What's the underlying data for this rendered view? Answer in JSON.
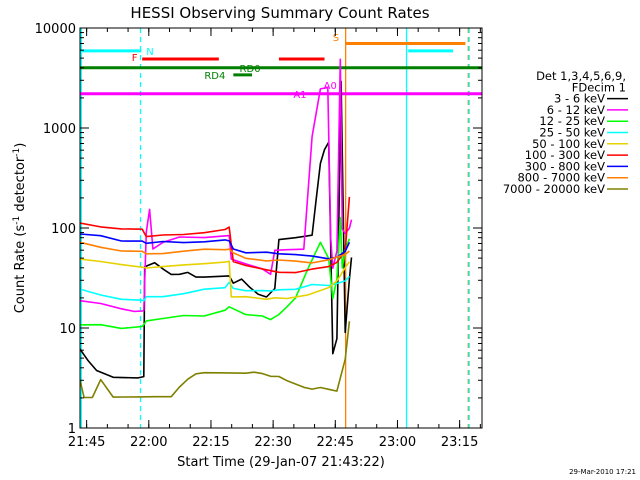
{
  "chart_data": {
    "type": "line",
    "title": "HESSI Observing Summary Count Rates",
    "xlabel": "Start Time (29-Jan-07 21:43:22)",
    "ylabel": "Count Rate (s^-1 detector^-1)",
    "x_unit": "minutes after 21:43:22",
    "xlim": [
      0,
      97
    ],
    "ylim": [
      1,
      10000
    ],
    "yscale": "log",
    "x_ticks": [
      {
        "x": 1.6,
        "label": "21:45"
      },
      {
        "x": 16.6,
        "label": "22:00"
      },
      {
        "x": 31.6,
        "label": "22:15"
      },
      {
        "x": 46.6,
        "label": "22:30"
      },
      {
        "x": 61.6,
        "label": "22:45"
      },
      {
        "x": 76.6,
        "label": "23:00"
      },
      {
        "x": 91.6,
        "label": "23:15"
      }
    ],
    "y_ticks": [
      {
        "y": 1,
        "label": "1"
      },
      {
        "y": 10,
        "label": "10"
      },
      {
        "y": 100,
        "label": "100"
      },
      {
        "y": 1000,
        "label": "1000"
      },
      {
        "y": 10000,
        "label": "10000"
      }
    ],
    "legend_title": [
      "Det 1,3,4,5,6,9,",
      "FDecim 1"
    ],
    "legend_position": "right",
    "series": [
      {
        "name": "3 - 6 keV",
        "color": "#000000",
        "points": [
          [
            0,
            6
          ],
          [
            2,
            4.6
          ],
          [
            4,
            3.8
          ],
          [
            8,
            3.3
          ],
          [
            14,
            3.2
          ],
          [
            15.4,
            3.2
          ],
          [
            15.6,
            40
          ],
          [
            18,
            45
          ],
          [
            20,
            40
          ],
          [
            22,
            35
          ],
          [
            24,
            34
          ],
          [
            26,
            35
          ],
          [
            28,
            32
          ],
          [
            30,
            33
          ],
          [
            36,
            34
          ],
          [
            37,
            28
          ],
          [
            39,
            30
          ],
          [
            41,
            25
          ],
          [
            43,
            22
          ],
          [
            45,
            21
          ],
          [
            47,
            25
          ],
          [
            48,
            75
          ],
          [
            52,
            78
          ],
          [
            56,
            85
          ],
          [
            57,
            200
          ],
          [
            58,
            450
          ],
          [
            59,
            600
          ],
          [
            60,
            700
          ],
          [
            61,
            5.5
          ],
          [
            62,
            8
          ],
          [
            63,
            3000
          ],
          [
            64,
            9
          ],
          [
            65,
            30
          ],
          [
            65.5,
            50
          ]
        ]
      },
      {
        "name": "6 - 12 keV",
        "color": "#ff00ff",
        "points": [
          [
            0,
            19
          ],
          [
            5,
            18
          ],
          [
            10,
            16
          ],
          [
            13,
            15
          ],
          [
            15,
            15
          ],
          [
            15.4,
            15
          ],
          [
            16,
            90
          ],
          [
            16.8,
            150
          ],
          [
            17.6,
            60
          ],
          [
            20,
            70
          ],
          [
            24,
            80
          ],
          [
            30,
            80
          ],
          [
            36,
            85
          ],
          [
            36.5,
            50
          ],
          [
            40,
            45
          ],
          [
            44,
            40
          ],
          [
            46,
            35
          ],
          [
            47,
            60
          ],
          [
            50,
            60
          ],
          [
            54,
            60
          ],
          [
            56,
            800
          ],
          [
            58,
            2400
          ],
          [
            59.8,
            2500
          ],
          [
            60.5,
            80
          ],
          [
            61,
            40
          ],
          [
            62,
            60
          ],
          [
            62.8,
            5000
          ],
          [
            63.3,
            100
          ],
          [
            64,
            90
          ],
          [
            65,
            100
          ],
          [
            65.5,
            120
          ]
        ]
      },
      {
        "name": "12 - 25 keV",
        "color": "#00ff00",
        "points": [
          [
            0,
            11
          ],
          [
            5,
            10.5
          ],
          [
            10,
            10
          ],
          [
            15,
            10.5
          ],
          [
            15.4,
            10.5
          ],
          [
            16,
            12
          ],
          [
            20,
            12.5
          ],
          [
            25,
            13
          ],
          [
            30,
            13.5
          ],
          [
            35,
            15
          ],
          [
            36,
            16
          ],
          [
            40,
            14
          ],
          [
            44,
            13
          ],
          [
            46,
            12
          ],
          [
            48,
            14
          ],
          [
            50,
            16
          ],
          [
            52,
            20
          ],
          [
            55,
            40
          ],
          [
            58,
            70
          ],
          [
            60,
            50
          ],
          [
            61,
            20
          ],
          [
            62,
            30
          ],
          [
            62.8,
            130
          ],
          [
            63.3,
            40
          ],
          [
            64,
            60
          ],
          [
            65,
            80
          ]
        ]
      },
      {
        "name": "25 - 50 keV",
        "color": "#00ffff",
        "points": [
          [
            0,
            24
          ],
          [
            5,
            22
          ],
          [
            10,
            19
          ],
          [
            15,
            19
          ],
          [
            15.4,
            19
          ],
          [
            16,
            20
          ],
          [
            20,
            21
          ],
          [
            25,
            22
          ],
          [
            30,
            24
          ],
          [
            35,
            26
          ],
          [
            36,
            28
          ],
          [
            37,
            25
          ],
          [
            40,
            24
          ],
          [
            44,
            23
          ],
          [
            46,
            24
          ],
          [
            48,
            24
          ],
          [
            52,
            24
          ],
          [
            56,
            28
          ],
          [
            60,
            26
          ],
          [
            62,
            28
          ],
          [
            64,
            30
          ],
          [
            65,
            32
          ]
        ]
      },
      {
        "name": "50 - 100 keV",
        "color": "#e6d200",
        "points": [
          [
            0,
            48
          ],
          [
            5,
            45
          ],
          [
            10,
            42
          ],
          [
            15,
            40
          ],
          [
            16,
            40
          ],
          [
            20,
            42
          ],
          [
            25,
            44
          ],
          [
            30,
            45
          ],
          [
            35,
            46
          ],
          [
            36,
            46
          ],
          [
            36.5,
            20
          ],
          [
            40,
            20
          ],
          [
            45,
            19
          ],
          [
            47,
            20
          ],
          [
            50,
            20
          ],
          [
            55,
            22
          ],
          [
            60,
            26
          ],
          [
            62,
            30
          ],
          [
            64,
            40
          ],
          [
            65,
            45
          ]
        ]
      },
      {
        "name": "100 - 300 keV",
        "color": "#ff0000",
        "points": [
          [
            0,
            115
          ],
          [
            5,
            105
          ],
          [
            10,
            98
          ],
          [
            15,
            95
          ],
          [
            16,
            80
          ],
          [
            20,
            85
          ],
          [
            25,
            88
          ],
          [
            30,
            92
          ],
          [
            35,
            97
          ],
          [
            36,
            100
          ],
          [
            37,
            45
          ],
          [
            40,
            42
          ],
          [
            45,
            39
          ],
          [
            48,
            37
          ],
          [
            52,
            36
          ],
          [
            56,
            38
          ],
          [
            60,
            40
          ],
          [
            62,
            45
          ],
          [
            64,
            60
          ],
          [
            65,
            210
          ]
        ]
      },
      {
        "name": "300 - 800 keV",
        "color": "#0000ff",
        "points": [
          [
            0,
            88
          ],
          [
            5,
            82
          ],
          [
            10,
            76
          ],
          [
            15,
            72
          ],
          [
            16,
            72
          ],
          [
            20,
            72
          ],
          [
            25,
            72
          ],
          [
            30,
            73
          ],
          [
            35,
            75
          ],
          [
            36,
            76
          ],
          [
            37,
            60
          ],
          [
            40,
            58
          ],
          [
            45,
            56
          ],
          [
            48,
            56
          ],
          [
            52,
            54
          ],
          [
            56,
            52
          ],
          [
            60,
            50
          ],
          [
            62,
            50
          ],
          [
            64,
            60
          ],
          [
            65,
            70
          ]
        ]
      },
      {
        "name": "800 - 7000 keV",
        "color": "#ff8000",
        "points": [
          [
            0,
            70
          ],
          [
            5,
            65
          ],
          [
            10,
            60
          ],
          [
            15,
            57
          ],
          [
            16,
            55
          ],
          [
            20,
            57
          ],
          [
            25,
            58
          ],
          [
            30,
            60
          ],
          [
            35,
            62
          ],
          [
            36,
            62
          ],
          [
            37,
            55
          ],
          [
            40,
            50
          ],
          [
            45,
            48
          ],
          [
            48,
            47
          ],
          [
            52,
            46
          ],
          [
            56,
            46
          ],
          [
            60,
            48
          ],
          [
            62,
            50
          ],
          [
            64,
            55
          ],
          [
            65,
            60
          ]
        ]
      },
      {
        "name": "7000 - 20000 keV",
        "color": "#808000",
        "points": [
          [
            0,
            3
          ],
          [
            1,
            2
          ],
          [
            3,
            2
          ],
          [
            5,
            3
          ],
          [
            8,
            2
          ],
          [
            11,
            2
          ],
          [
            14,
            2
          ],
          [
            16,
            2
          ],
          [
            18,
            2
          ],
          [
            20,
            2
          ],
          [
            22,
            2
          ],
          [
            24,
            2.5
          ],
          [
            26,
            3
          ],
          [
            28,
            3.4
          ],
          [
            30,
            3.5
          ],
          [
            33,
            3.5
          ],
          [
            36,
            3.5
          ],
          [
            38,
            3.5
          ],
          [
            40,
            3.5
          ],
          [
            42,
            3.6
          ],
          [
            44,
            3.5
          ],
          [
            46,
            3.3
          ],
          [
            48,
            3.3
          ],
          [
            50,
            3
          ],
          [
            52,
            2.8
          ],
          [
            54,
            2.6
          ],
          [
            56,
            2.5
          ],
          [
            58,
            2.6
          ],
          [
            60,
            2.5
          ],
          [
            62,
            2.4
          ],
          [
            64,
            5
          ],
          [
            65,
            12
          ]
        ]
      }
    ],
    "flag_bars": [
      {
        "label": "N",
        "color": "#00ffff",
        "y": 5900,
        "segments": [
          [
            0,
            14.8
          ],
          [
            79.2,
            90
          ]
        ]
      },
      {
        "label": "F",
        "color": "#ff0000",
        "y": 4900,
        "segments": [
          [
            15,
            33.5
          ],
          [
            48,
            59
          ]
        ]
      },
      {
        "label": "RD0",
        "color": "#008000",
        "y": 4000,
        "segments": [
          [
            0,
            97
          ]
        ]
      },
      {
        "label": "RD4",
        "color": "#008000",
        "y": 3400,
        "segments": [
          [
            37,
            41.5
          ]
        ]
      },
      {
        "label": "A1",
        "color": "#ff00ff",
        "y": 2200,
        "segments": [
          [
            0,
            97
          ]
        ]
      },
      {
        "label": "S",
        "color": "#ff8000",
        "y": 7000,
        "segments": [
          [
            64,
            93
          ]
        ]
      }
    ],
    "flag_labels": [
      {
        "text": "N",
        "color": "#00ffff",
        "x": 16.0,
        "y": 5400
      },
      {
        "text": "F",
        "color": "#ff0000",
        "x": 12.5,
        "y": 4700
      },
      {
        "text": "RD0",
        "color": "#008000",
        "x": 38.5,
        "y": 3650
      },
      {
        "text": "RD4",
        "color": "#008000",
        "x": 30.0,
        "y": 3100
      },
      {
        "text": "A1",
        "color": "#ff00ff",
        "x": 51.5,
        "y": 2000
      },
      {
        "text": "A0",
        "color": "#ff00ff",
        "x": 58.8,
        "y": 2450
      },
      {
        "text": "S",
        "color": "#ff8000",
        "x": 61.0,
        "y": 7400
      }
    ],
    "vlines": [
      {
        "x": 0.3,
        "color": "#00ffff",
        "dashed": false
      },
      {
        "x": 14.6,
        "color": "#00ffff",
        "dashed": true
      },
      {
        "x": 64.1,
        "color": "#ff8000",
        "dashed": false
      },
      {
        "x": 78.8,
        "color": "#00ffff",
        "dashed": false
      },
      {
        "x": 93.7,
        "color": "#ff8000",
        "dashed": true
      },
      {
        "x": 93.9,
        "color": "#00ffff",
        "dashed": true
      }
    ]
  },
  "timestamp": "29-Mar-2010 17:21"
}
